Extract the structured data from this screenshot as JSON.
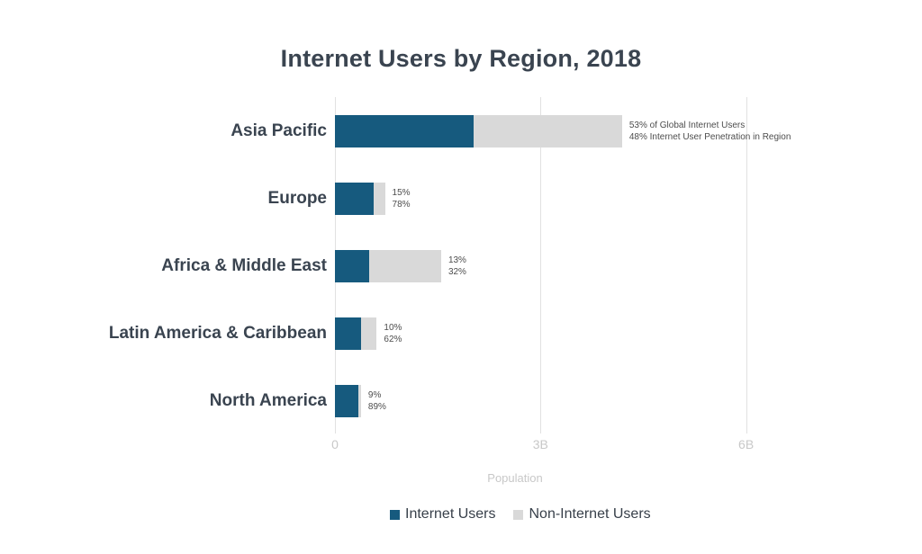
{
  "title": "Internet Users by Region, 2018",
  "colors": {
    "internet_users": "#165A7E",
    "non_internet_users": "#D9D9D9",
    "title_text": "#3A4450",
    "annotation_text": "#4D4D4D",
    "axis_text": "#C8C8C8",
    "gridline": "#E1E1E1"
  },
  "chart_data": {
    "type": "bar",
    "orientation": "horizontal",
    "stacked": true,
    "title": "Internet Users by Region, 2018",
    "xlabel": "Population",
    "xlim_billions": [
      0,
      6
    ],
    "x_ticks": [
      {
        "label": "0",
        "value_billions": 0
      },
      {
        "label": "3B",
        "value_billions": 3
      },
      {
        "label": "6B",
        "value_billions": 6
      }
    ],
    "grid": true,
    "categories": [
      "Asia Pacific",
      "Europe",
      "Africa & Middle East",
      "Latin America & Caribbean",
      "North America"
    ],
    "series": [
      {
        "name": "Internet Users",
        "color": "#165A7E",
        "values_billions": [
          2.02,
          0.57,
          0.5,
          0.38,
          0.34
        ]
      },
      {
        "name": "Non-Internet Users",
        "color": "#D9D9D9",
        "values_billions": [
          2.17,
          0.16,
          1.05,
          0.23,
          0.04
        ]
      }
    ],
    "totals_billions": [
      4.19,
      0.73,
      1.55,
      0.61,
      0.38
    ],
    "percent_of_global_internet_users": [
      53,
      15,
      13,
      10,
      9
    ],
    "internet_penetration_percent": [
      48,
      78,
      32,
      62,
      89
    ],
    "annotations": [
      [
        "53% of Global Internet Users",
        "48% Internet User Penetration in Region"
      ],
      [
        "15%",
        "78%"
      ],
      [
        "13%",
        "32%"
      ],
      [
        "10%",
        "62%"
      ],
      [
        "9%",
        "89%"
      ]
    ],
    "legend": {
      "position": "bottom",
      "entries": [
        "Internet Users",
        "Non-Internet Users"
      ]
    }
  }
}
